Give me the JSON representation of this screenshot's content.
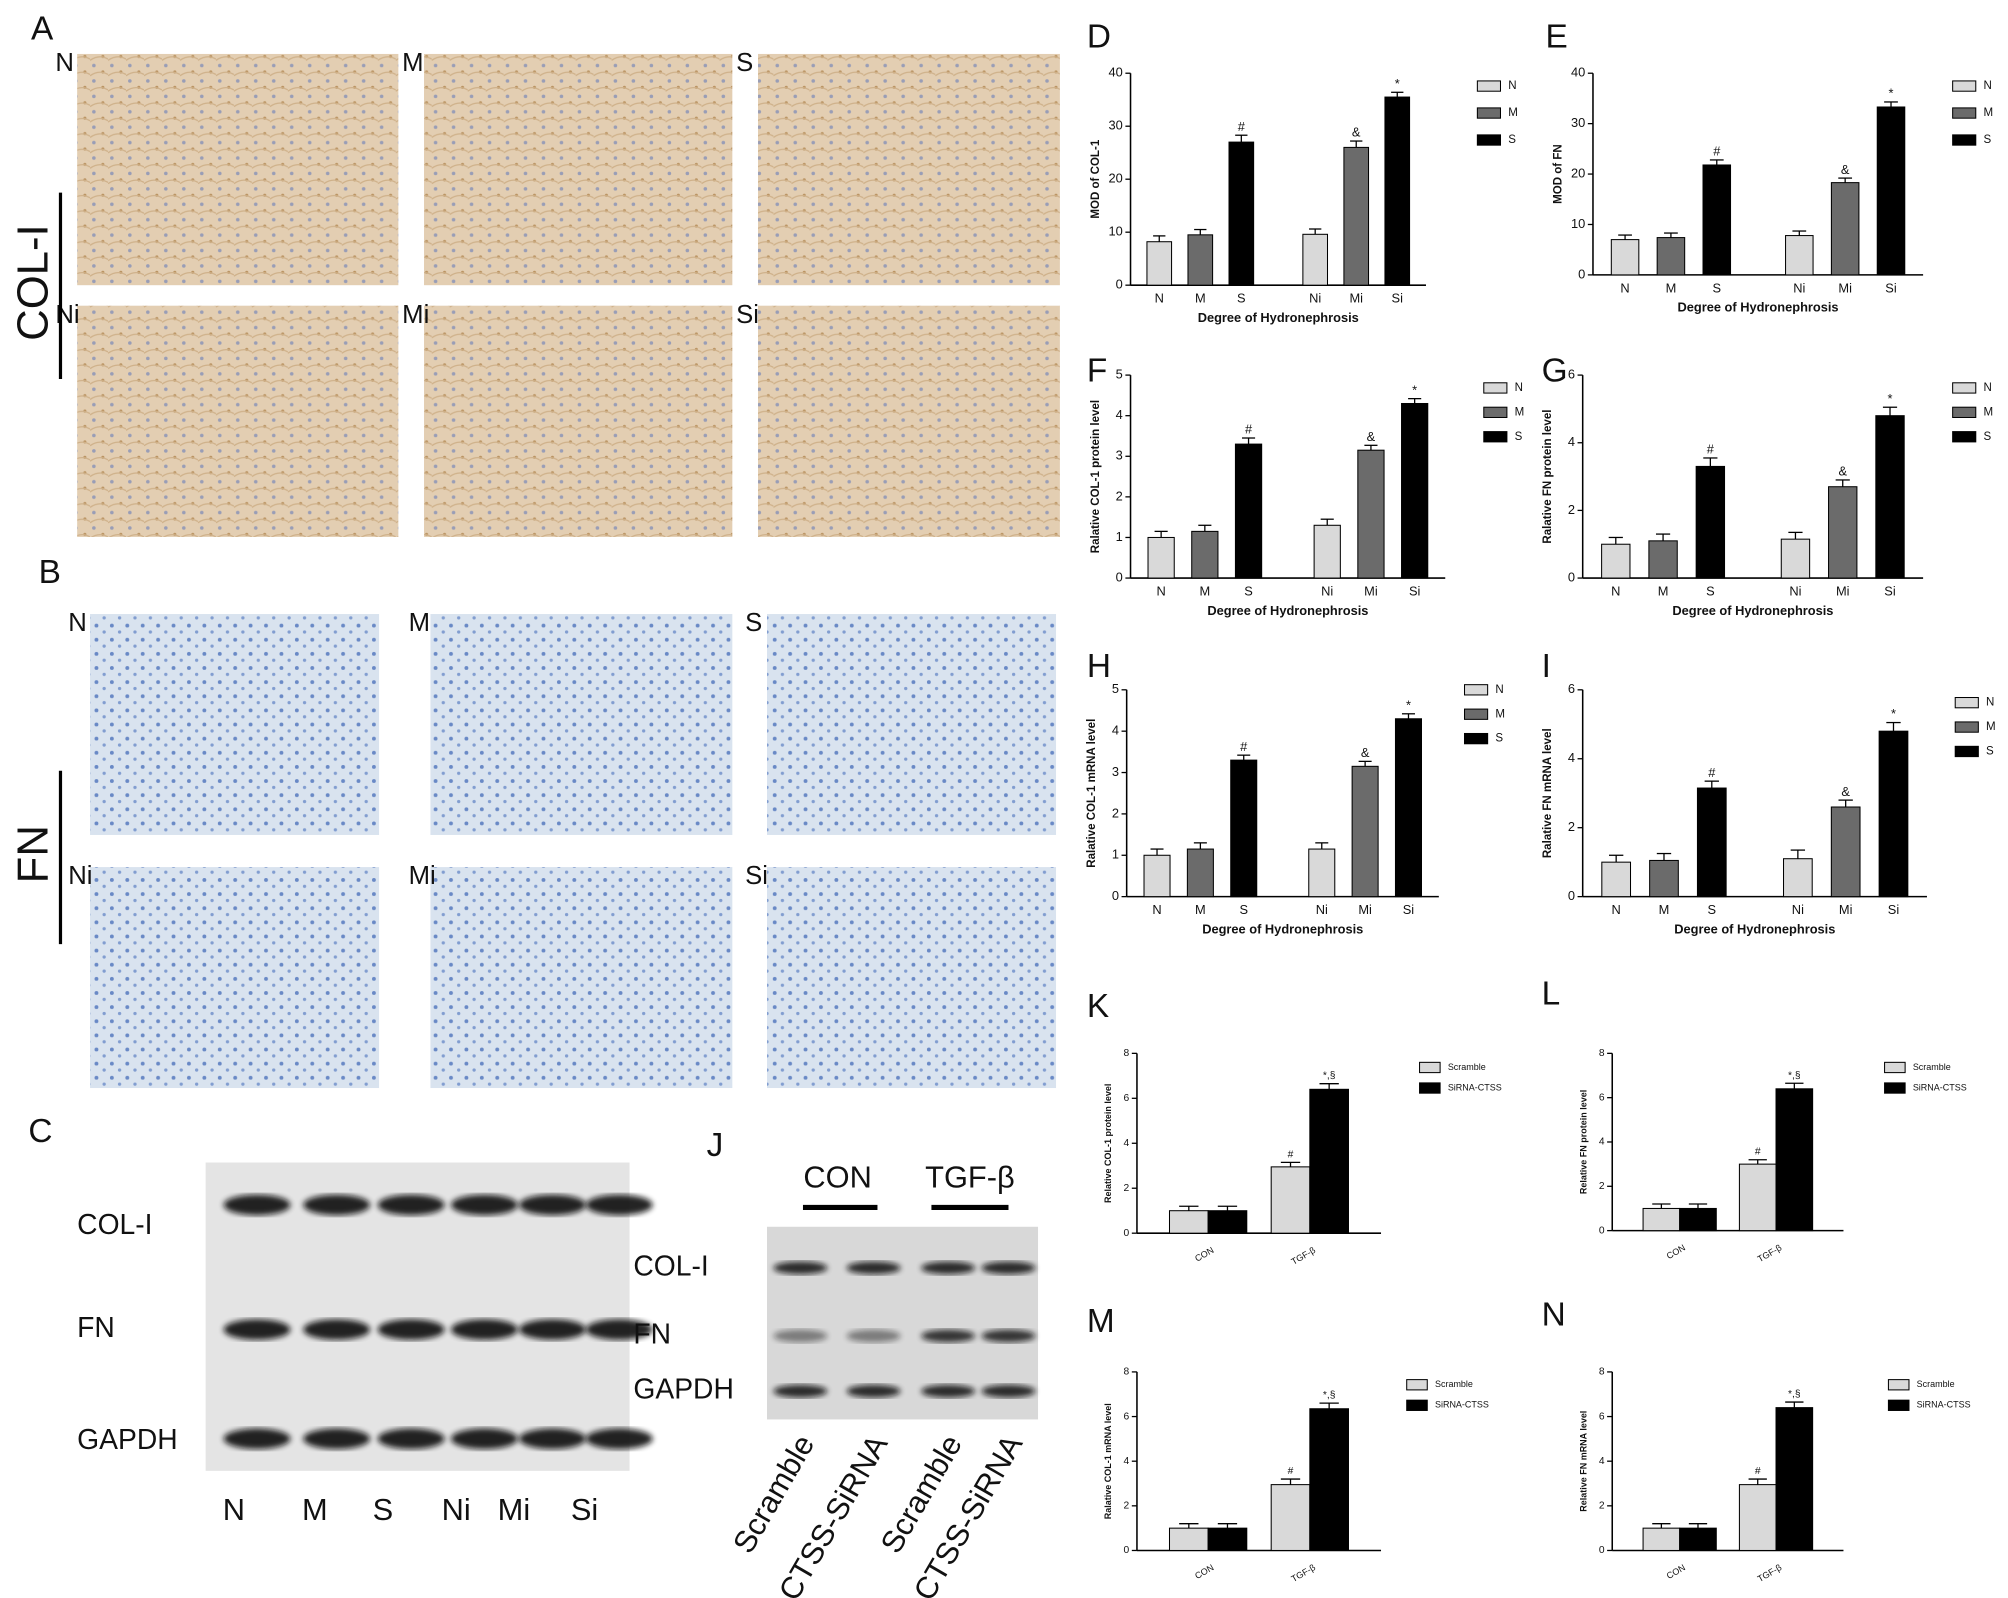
{
  "chart_data": [
    {
      "type": "bar",
      "panel": "D",
      "ylabel": "MOD of COL-1",
      "xlabel": "Degree of Hydronephrosis",
      "categories": [
        "N",
        "M",
        "S",
        "Ni",
        "Mi",
        "Si"
      ],
      "ylim": [
        0,
        40
      ],
      "yticks": [
        0,
        10,
        20,
        30,
        40
      ],
      "series": [
        {
          "name": "N",
          "color": "#d9d9d9",
          "values": [
            8.2,
            null,
            null,
            9.6,
            null,
            null
          ],
          "errors": [
            1.1,
            null,
            null,
            1.0,
            null,
            null
          ]
        },
        {
          "name": "M",
          "color": "#6b6b6b",
          "values": [
            null,
            9.5,
            null,
            null,
            26.0,
            null
          ],
          "errors": [
            null,
            1.0,
            null,
            null,
            1.2,
            null
          ],
          "annotations": [
            null,
            null,
            null,
            null,
            "&",
            null
          ]
        },
        {
          "name": "S",
          "color": "#000000",
          "values": [
            null,
            null,
            27.0,
            null,
            null,
            35.5
          ],
          "errors": [
            null,
            null,
            1.3,
            null,
            null,
            0.9
          ],
          "annotations": [
            null,
            null,
            "#",
            null,
            null,
            "*"
          ]
        }
      ]
    },
    {
      "type": "bar",
      "panel": "E",
      "ylabel": "MOD of FN",
      "xlabel": "Degree of Hydronephrosis",
      "categories": [
        "N",
        "M",
        "S",
        "Ni",
        "Mi",
        "Si"
      ],
      "ylim": [
        0,
        40
      ],
      "yticks": [
        0,
        10,
        20,
        30,
        40
      ],
      "series": [
        {
          "name": "N",
          "color": "#d9d9d9",
          "values": [
            7.0,
            null,
            null,
            7.8,
            null,
            null
          ],
          "errors": [
            0.9,
            null,
            null,
            0.9,
            null,
            null
          ]
        },
        {
          "name": "M",
          "color": "#6b6b6b",
          "values": [
            null,
            7.4,
            null,
            null,
            18.3,
            null
          ],
          "errors": [
            null,
            0.9,
            null,
            null,
            0.9,
            null
          ],
          "annotations": [
            null,
            null,
            null,
            null,
            "&",
            null
          ]
        },
        {
          "name": "S",
          "color": "#000000",
          "values": [
            null,
            null,
            21.8,
            null,
            null,
            33.3
          ],
          "errors": [
            null,
            null,
            1.0,
            null,
            null,
            1.0
          ],
          "annotations": [
            null,
            null,
            "#",
            null,
            null,
            "*"
          ]
        }
      ]
    },
    {
      "type": "bar",
      "panel": "F",
      "ylabel": "Ralative COL-1 protein level",
      "xlabel": "Degree of Hydronephrosis",
      "categories": [
        "N",
        "M",
        "S",
        "Ni",
        "Mi",
        "Si"
      ],
      "ylim": [
        0,
        5
      ],
      "yticks": [
        0,
        1,
        2,
        3,
        4,
        5
      ],
      "series": [
        {
          "name": "N",
          "color": "#d9d9d9",
          "values": [
            1.0,
            null,
            null,
            1.3,
            null,
            null
          ],
          "errors": [
            0.15,
            null,
            null,
            0.15,
            null,
            null
          ]
        },
        {
          "name": "M",
          "color": "#6b6b6b",
          "values": [
            null,
            1.15,
            null,
            null,
            3.15,
            null
          ],
          "errors": [
            null,
            0.15,
            null,
            null,
            0.12,
            null
          ],
          "annotations": [
            null,
            null,
            null,
            null,
            "&",
            null
          ]
        },
        {
          "name": "S",
          "color": "#000000",
          "values": [
            null,
            null,
            3.3,
            null,
            null,
            4.3
          ],
          "errors": [
            null,
            null,
            0.15,
            null,
            null,
            0.12
          ],
          "annotations": [
            null,
            null,
            "#",
            null,
            null,
            "*"
          ]
        }
      ]
    },
    {
      "type": "bar",
      "panel": "G",
      "ylabel": "Ralative FN protein level",
      "xlabel": "Degree of Hydronephrosis",
      "categories": [
        "N",
        "M",
        "S",
        "Ni",
        "Mi",
        "Si"
      ],
      "ylim": [
        0,
        6
      ],
      "yticks": [
        0,
        2,
        4,
        6
      ],
      "series": [
        {
          "name": "N",
          "color": "#d9d9d9",
          "values": [
            1.0,
            null,
            null,
            1.15,
            null,
            null
          ],
          "errors": [
            0.2,
            null,
            null,
            0.2,
            null,
            null
          ]
        },
        {
          "name": "M",
          "color": "#6b6b6b",
          "values": [
            null,
            1.1,
            null,
            null,
            2.7,
            null
          ],
          "errors": [
            null,
            0.2,
            null,
            null,
            0.2,
            null
          ],
          "annotations": [
            null,
            null,
            null,
            null,
            "&",
            null
          ]
        },
        {
          "name": "S",
          "color": "#000000",
          "values": [
            null,
            null,
            3.3,
            null,
            null,
            4.8
          ],
          "errors": [
            null,
            null,
            0.25,
            null,
            null,
            0.25
          ],
          "annotations": [
            null,
            null,
            "#",
            null,
            null,
            "*"
          ]
        }
      ]
    },
    {
      "type": "bar",
      "panel": "H",
      "ylabel": "Ralative COL-1 mRNA level",
      "xlabel": "Degree of Hydronephrosis",
      "categories": [
        "N",
        "M",
        "S",
        "Ni",
        "Mi",
        "Si"
      ],
      "ylim": [
        0,
        5
      ],
      "yticks": [
        0,
        1,
        2,
        3,
        4,
        5
      ],
      "series": [
        {
          "name": "N",
          "color": "#d9d9d9",
          "values": [
            1.0,
            null,
            null,
            1.15,
            null,
            null
          ],
          "errors": [
            0.15,
            null,
            null,
            0.15,
            null,
            null
          ]
        },
        {
          "name": "M",
          "color": "#6b6b6b",
          "values": [
            null,
            1.15,
            null,
            null,
            3.15,
            null
          ],
          "errors": [
            null,
            0.15,
            null,
            null,
            0.12,
            null
          ],
          "annotations": [
            null,
            null,
            null,
            null,
            "&",
            null
          ]
        },
        {
          "name": "S",
          "color": "#000000",
          "values": [
            null,
            null,
            3.3,
            null,
            null,
            4.3
          ],
          "errors": [
            null,
            null,
            0.12,
            null,
            null,
            0.12
          ],
          "annotations": [
            null,
            null,
            "#",
            null,
            null,
            "*"
          ]
        }
      ]
    },
    {
      "type": "bar",
      "panel": "I",
      "ylabel": "Ralative FN mRNA level",
      "xlabel": "Degree of Hydronephrosis",
      "categories": [
        "N",
        "M",
        "S",
        "Ni",
        "Mi",
        "Si"
      ],
      "ylim": [
        0,
        6
      ],
      "yticks": [
        0,
        2,
        4,
        6
      ],
      "series": [
        {
          "name": "N",
          "color": "#d9d9d9",
          "values": [
            1.0,
            null,
            null,
            1.1,
            null,
            null
          ],
          "errors": [
            0.2,
            null,
            null,
            0.25,
            null,
            null
          ]
        },
        {
          "name": "M",
          "color": "#6b6b6b",
          "values": [
            null,
            1.05,
            null,
            null,
            2.6,
            null
          ],
          "errors": [
            null,
            0.2,
            null,
            null,
            0.2,
            null
          ],
          "annotations": [
            null,
            null,
            null,
            null,
            "&",
            null
          ]
        },
        {
          "name": "S",
          "color": "#000000",
          "values": [
            null,
            null,
            3.15,
            null,
            null,
            4.8
          ],
          "errors": [
            null,
            null,
            0.2,
            null,
            null,
            0.25
          ],
          "annotations": [
            null,
            null,
            "#",
            null,
            null,
            "*"
          ]
        }
      ]
    },
    {
      "type": "bar",
      "panel": "K",
      "ylabel": "Relative COL-1 protein level",
      "categories": [
        "CON",
        "TGF-β"
      ],
      "ylim": [
        0,
        8
      ],
      "yticks": [
        0,
        2,
        4,
        6,
        8
      ],
      "series": [
        {
          "name": "Scramble",
          "color": "#d9d9d9",
          "values": [
            1.0,
            2.95
          ],
          "errors": [
            0.2,
            0.2
          ],
          "annotations": [
            null,
            "#"
          ]
        },
        {
          "name": "SiRNA-CTSS",
          "color": "#000000",
          "values": [
            1.0,
            6.4
          ],
          "errors": [
            0.2,
            0.25
          ],
          "annotations": [
            null,
            "*,§"
          ]
        }
      ]
    },
    {
      "type": "bar",
      "panel": "L",
      "ylabel": "Relative FN protein level",
      "categories": [
        "CON",
        "TGF-β"
      ],
      "ylim": [
        0,
        8
      ],
      "yticks": [
        0,
        2,
        4,
        6,
        8
      ],
      "series": [
        {
          "name": "Scramble",
          "color": "#d9d9d9",
          "values": [
            1.0,
            3.0
          ],
          "errors": [
            0.2,
            0.2
          ],
          "annotations": [
            null,
            "#"
          ]
        },
        {
          "name": "SiRNA-CTSS",
          "color": "#000000",
          "values": [
            1.0,
            6.4
          ],
          "errors": [
            0.2,
            0.25
          ],
          "annotations": [
            null,
            "*,§"
          ]
        }
      ]
    },
    {
      "type": "bar",
      "panel": "M",
      "ylabel": "Ralative COL-1 mRNA level",
      "categories": [
        "CON",
        "TGF-β"
      ],
      "ylim": [
        0,
        8
      ],
      "yticks": [
        0,
        2,
        4,
        6,
        8
      ],
      "series": [
        {
          "name": "Scramble",
          "color": "#d9d9d9",
          "values": [
            1.0,
            2.95
          ],
          "errors": [
            0.2,
            0.25
          ],
          "annotations": [
            null,
            "#"
          ]
        },
        {
          "name": "SiRNA-CTSS",
          "color": "#000000",
          "values": [
            1.0,
            6.35
          ],
          "errors": [
            0.2,
            0.25
          ],
          "annotations": [
            null,
            "*,§"
          ]
        }
      ]
    },
    {
      "type": "bar",
      "panel": "N",
      "ylabel": "Relative FN mRNA level",
      "categories": [
        "CON",
        "TGF-β"
      ],
      "ylim": [
        0,
        8
      ],
      "yticks": [
        0,
        2,
        4,
        6,
        8
      ],
      "series": [
        {
          "name": "Scramble",
          "color": "#d9d9d9",
          "values": [
            1.0,
            2.95
          ],
          "errors": [
            0.2,
            0.25
          ],
          "annotations": [
            null,
            "#"
          ]
        },
        {
          "name": "SiRNA-CTSS",
          "color": "#000000",
          "values": [
            1.0,
            6.4
          ],
          "errors": [
            0.2,
            0.25
          ],
          "annotations": [
            null,
            "*,§"
          ]
        }
      ]
    }
  ],
  "figure": {
    "panel_A": {
      "label": "A",
      "stain": "COL-I",
      "images": [
        "N",
        "M",
        "S",
        "Ni",
        "Mi",
        "Si"
      ]
    },
    "panel_B": {
      "label": "B",
      "stain": "FN",
      "images": [
        "N",
        "M",
        "S",
        "Ni",
        "Mi",
        "Si"
      ]
    },
    "panel_C": {
      "label": "C",
      "rows": [
        "COL-I",
        "FN",
        "GAPDH"
      ],
      "lanes": [
        "N",
        "M",
        "S",
        "Ni",
        "Mi",
        "Si"
      ]
    },
    "panel_J": {
      "label": "J",
      "groups": [
        "CON",
        "TGF-β"
      ],
      "rows": [
        "COL-I",
        "FN",
        "GAPDH"
      ],
      "lanes": [
        "Scramble",
        "CTSS-SiRNA",
        "Scramble",
        "CTSS-SiRNA"
      ]
    }
  }
}
